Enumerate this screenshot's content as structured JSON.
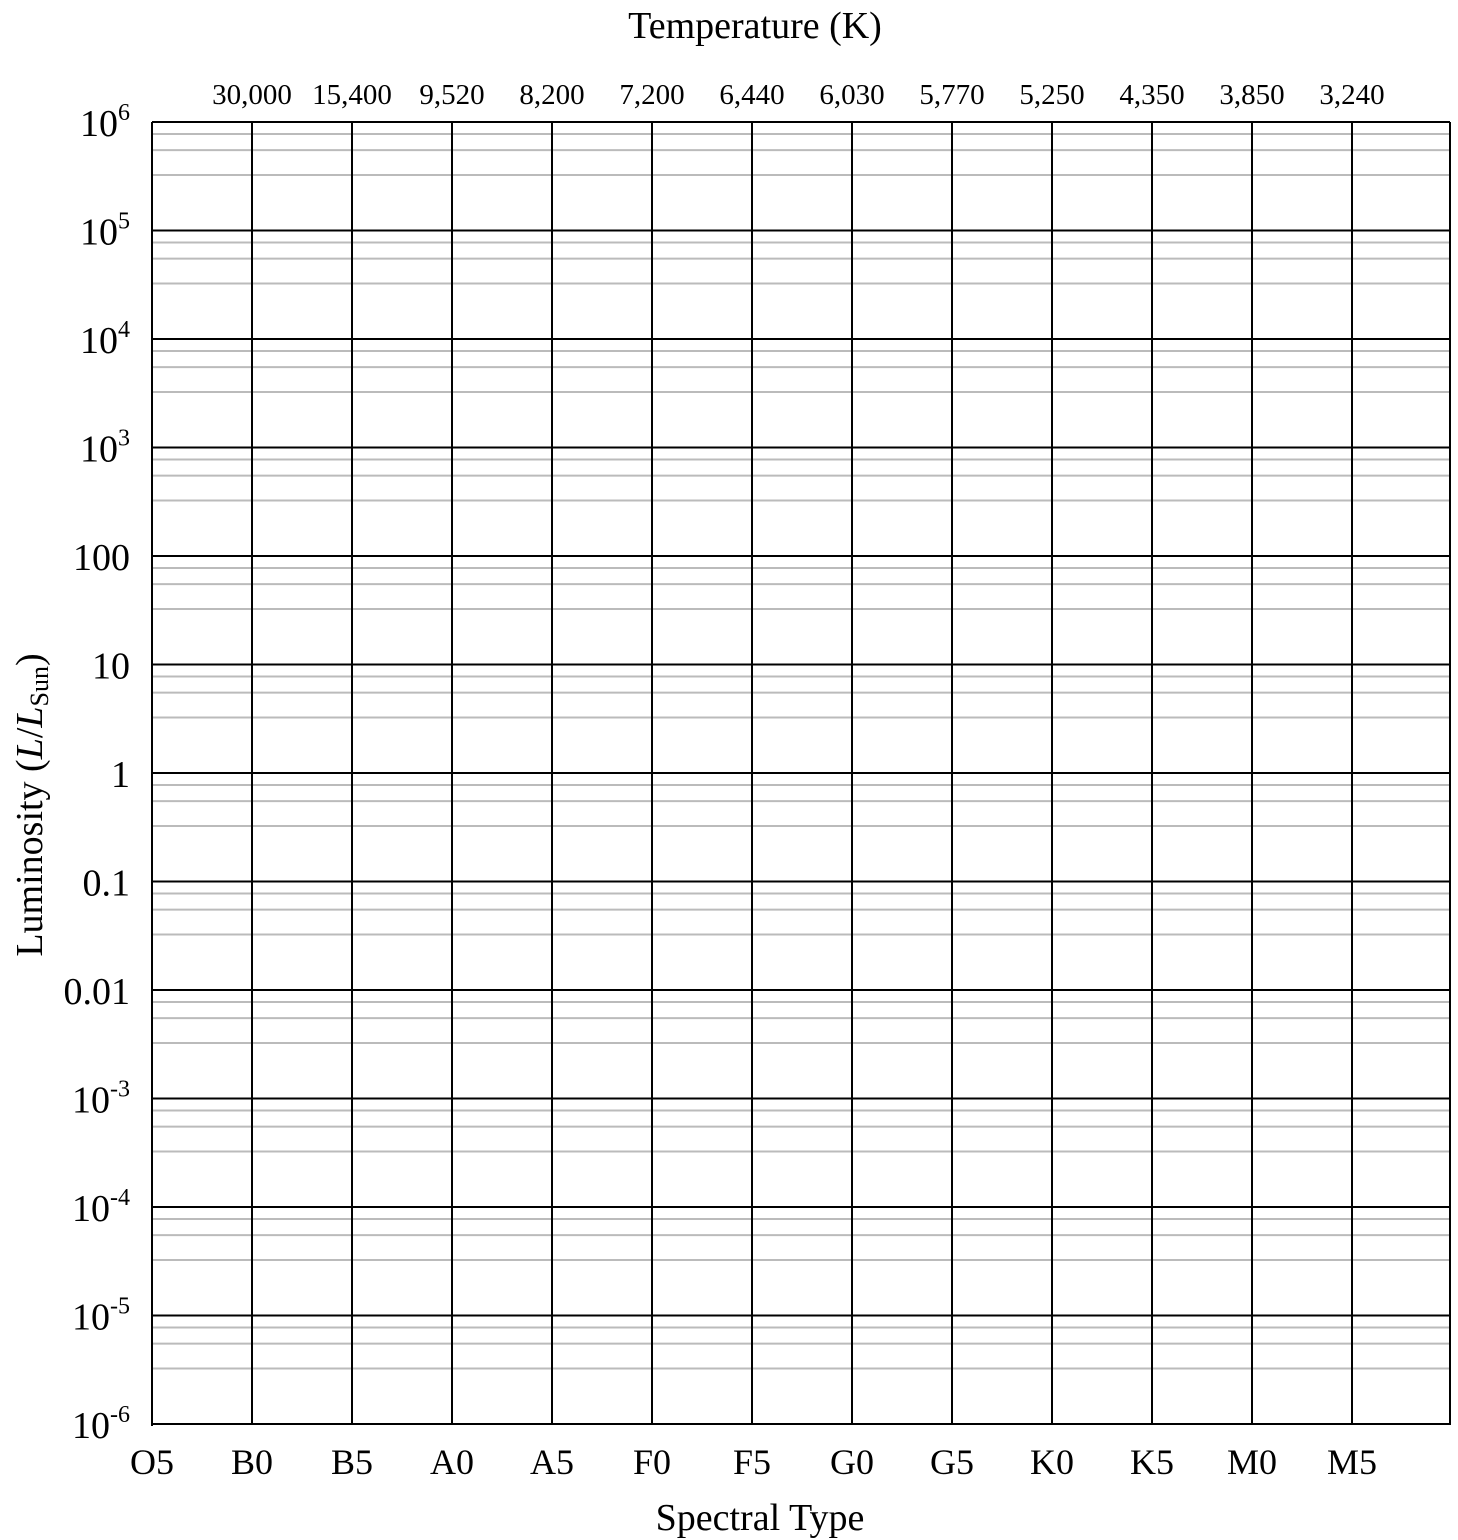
{
  "chart_data": {
    "type": "scatter",
    "title": "Temperature (K)",
    "xlabel": "Spectral Type",
    "ylabel": {
      "prefix": "Luminosity (",
      "L1": "L",
      "slash": "/",
      "L2": "L",
      "sub": "Sun",
      "suffix": ")"
    },
    "top_axis_label": "Temperature (K)",
    "x_categories": [
      "O5",
      "B0",
      "B5",
      "A0",
      "A5",
      "F0",
      "F5",
      "G0",
      "G5",
      "K0",
      "K5",
      "M0",
      "M5"
    ],
    "top_temperature_ticks": [
      "30,000",
      "15,400",
      "9,520",
      "8,200",
      "7,200",
      "6,440",
      "6,030",
      "5,770",
      "5,250",
      "4,350",
      "3,850",
      "3,240"
    ],
    "y_scale": "log",
    "ylim": [
      1e-06,
      1000000
    ],
    "y_ticks": [
      {
        "value": 1000000,
        "base": "10",
        "sup": "6"
      },
      {
        "value": 100000,
        "base": "10",
        "sup": "5"
      },
      {
        "value": 10000,
        "base": "10",
        "sup": "4"
      },
      {
        "value": 1000,
        "base": "10",
        "sup": "3"
      },
      {
        "value": 100,
        "base": "100",
        "sup": ""
      },
      {
        "value": 10,
        "base": "10",
        "sup": ""
      },
      {
        "value": 1,
        "base": "1",
        "sup": ""
      },
      {
        "value": 0.1,
        "base": "0.1",
        "sup": ""
      },
      {
        "value": 0.01,
        "base": "0.01",
        "sup": ""
      },
      {
        "value": 0.001,
        "base": "10",
        "sup": "-3"
      },
      {
        "value": 0.0001,
        "base": "10",
        "sup": "-4"
      },
      {
        "value": 1e-05,
        "base": "10",
        "sup": "-5"
      },
      {
        "value": 1e-06,
        "base": "10",
        "sup": "-6"
      }
    ],
    "minor_gridlines_per_decade": 3,
    "grid": true,
    "series": [],
    "colors": {
      "major_grid": "#000000",
      "minor_grid": "#bbbbbb",
      "background": "#ffffff"
    }
  }
}
